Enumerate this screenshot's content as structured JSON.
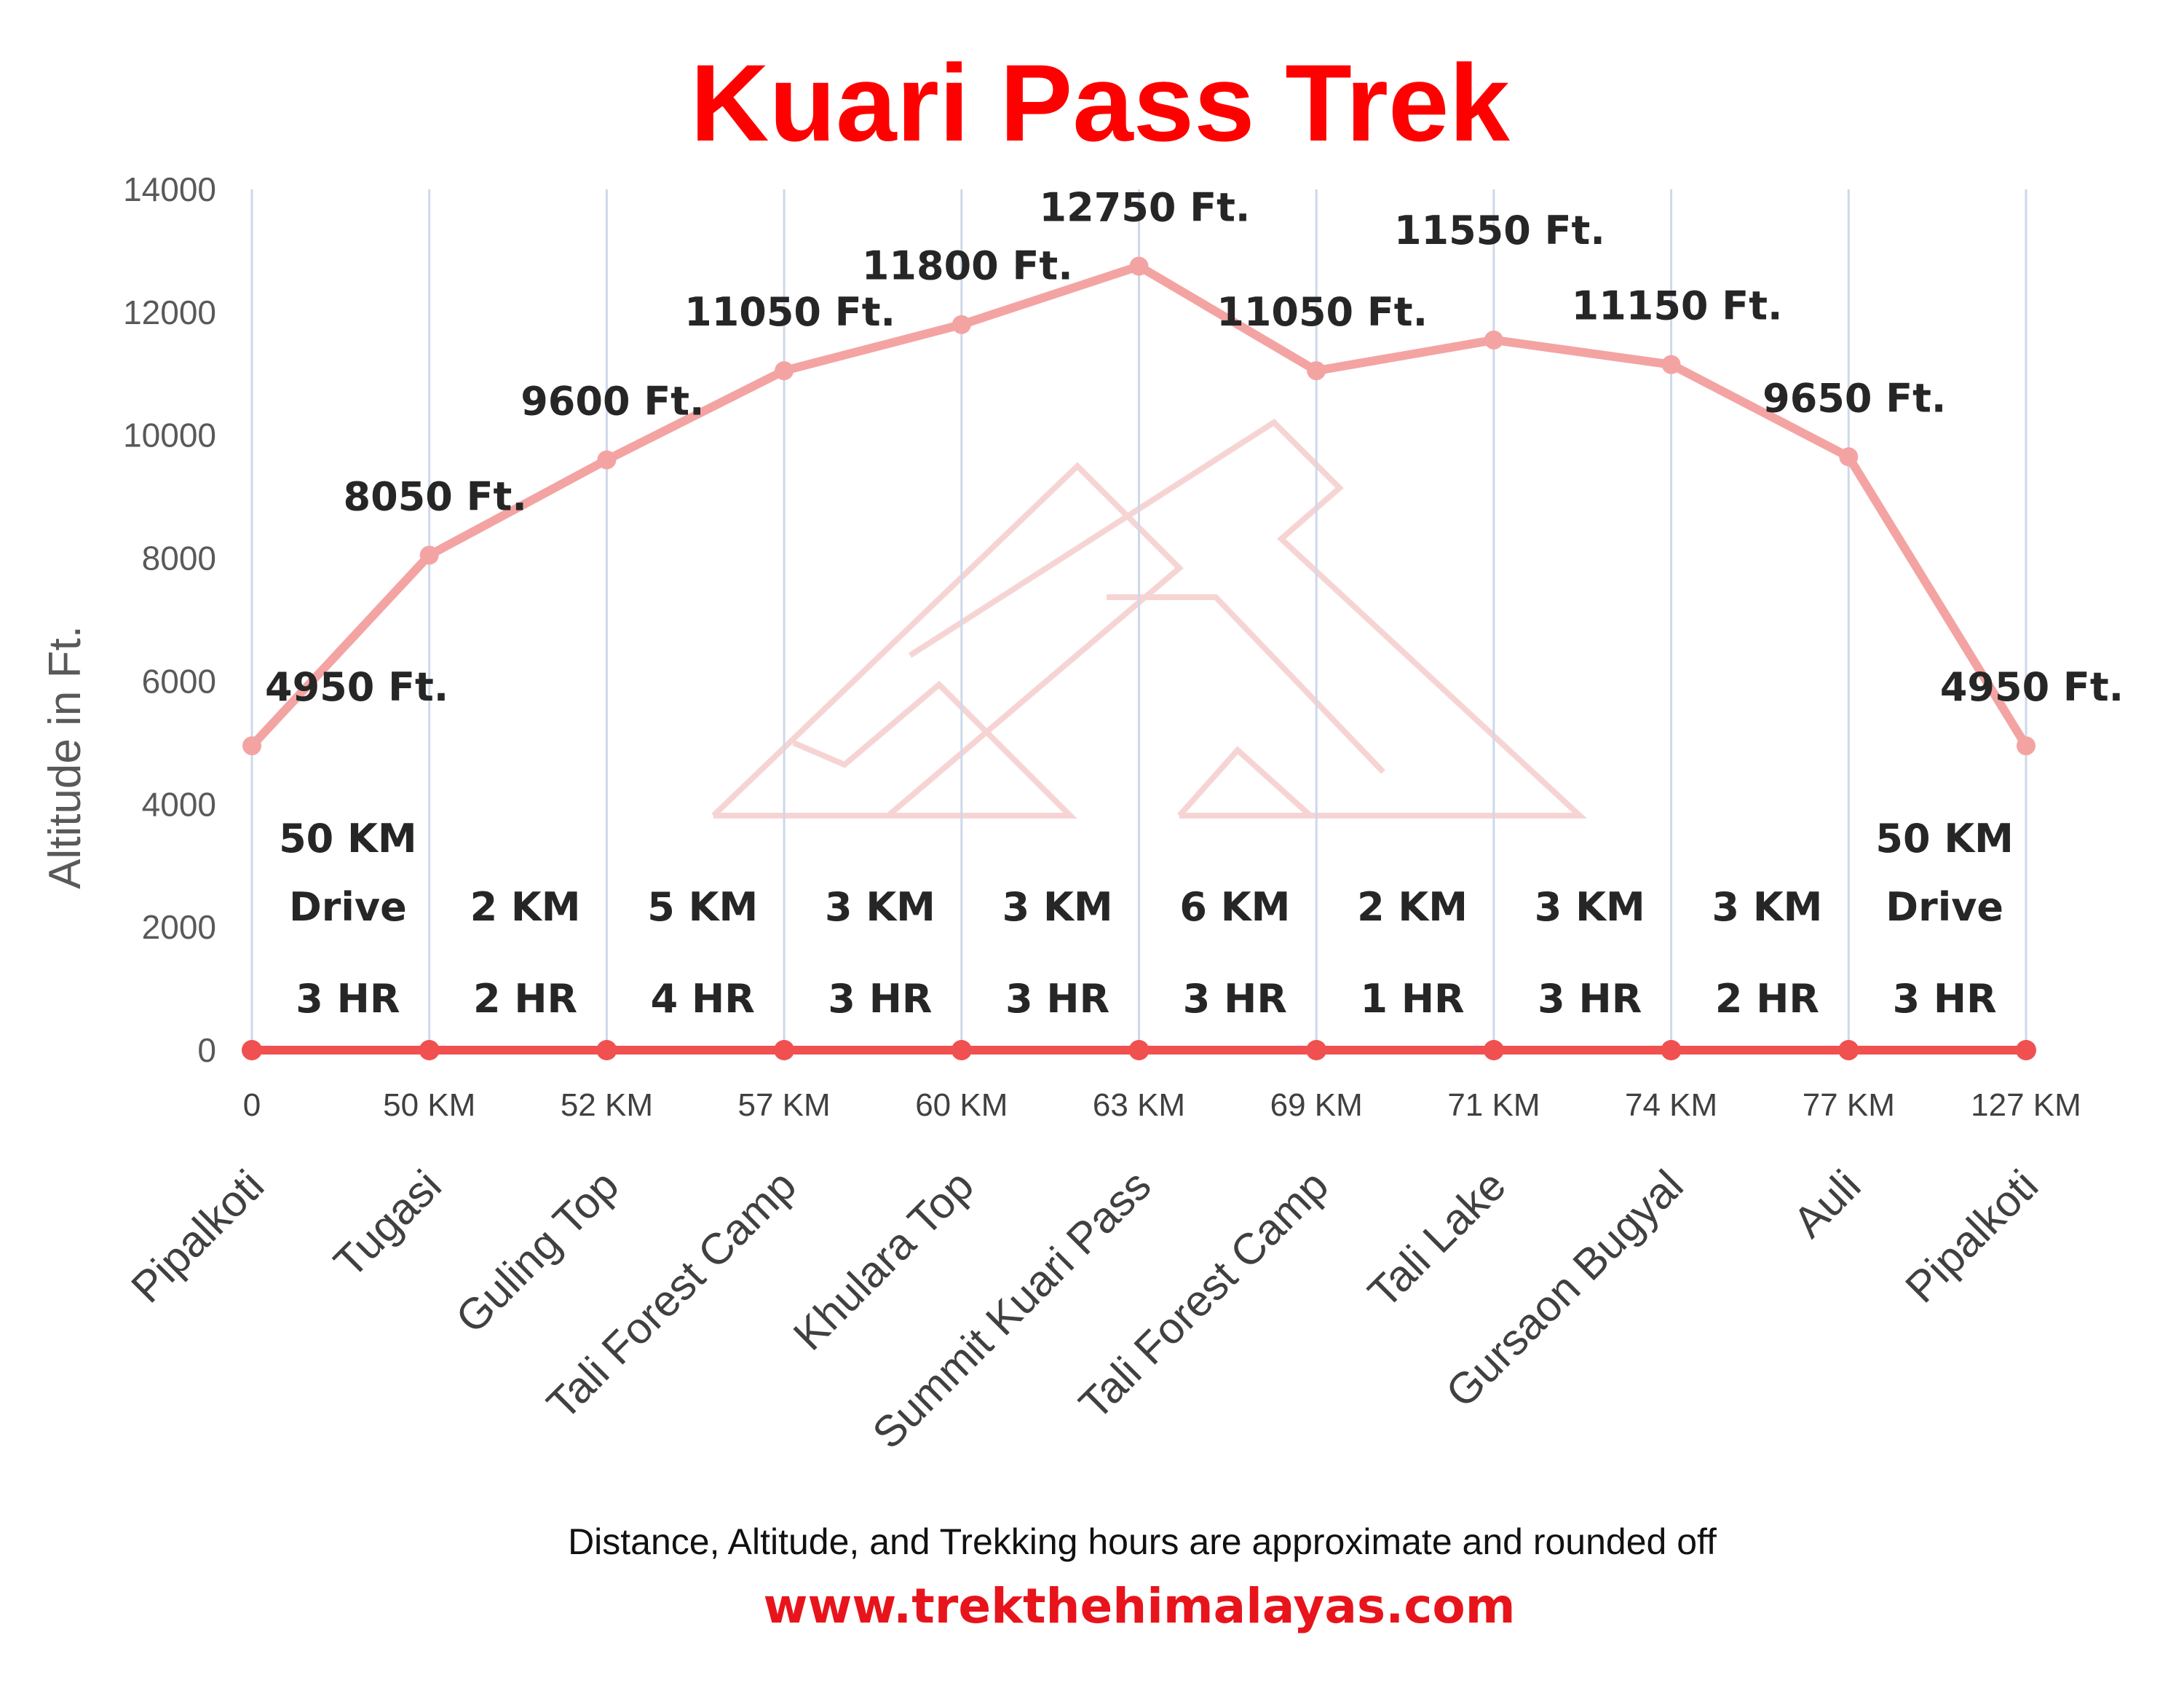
{
  "chart_data": {
    "type": "line",
    "title": "Kuari Pass Trek",
    "ylabel": "Altitude in Ft.",
    "ylim": [
      0,
      14000
    ],
    "yticks": [
      "0",
      "2000",
      "4000",
      "6000",
      "8000",
      "10000",
      "12000",
      "14000"
    ],
    "grid": "vertical",
    "categories": [
      "Pipalkoti",
      "Tugasi",
      "Guling Top",
      "Tali Forest Camp",
      "Khulara Top",
      "Summit Kuari Pass",
      "Tali Forest Camp",
      "Tali Lake",
      "Gursaon Bugyal",
      "Auli",
      "Pipalkoti"
    ],
    "distance_labels": [
      "0",
      "50 KM",
      "52 KM",
      "57 KM",
      "60 KM",
      "63 KM",
      "69 KM",
      "71 KM",
      "74 KM",
      "77 KM",
      "127 KM"
    ],
    "series": [
      {
        "values": [
          4950,
          8050,
          9600,
          11050,
          11800,
          12750,
          11050,
          11550,
          11150,
          9650,
          4950
        ],
        "color": "#f4a3a3"
      },
      {
        "values": [
          0,
          0,
          0,
          0,
          0,
          0,
          0,
          0,
          0,
          0,
          0
        ],
        "color": "#f05050"
      }
    ],
    "data_labels": [
      "4950 Ft.",
      "8050 Ft.",
      "9600 Ft.",
      "11050 Ft.",
      "11800 Ft.",
      "12750 Ft.",
      "11050 Ft.",
      "11550 Ft.",
      "11150 Ft.",
      "9650 Ft.",
      "4950 Ft."
    ],
    "segments": [
      {
        "top": "50  KM",
        "mid": "Drive",
        "bottom": "3 HR"
      },
      {
        "top": "",
        "mid": "2 KM",
        "bottom": "2 HR"
      },
      {
        "top": "",
        "mid": "5 KM",
        "bottom": "4 HR"
      },
      {
        "top": "",
        "mid": "3 KM",
        "bottom": "3 HR"
      },
      {
        "top": "",
        "mid": "3 KM",
        "bottom": "3 HR"
      },
      {
        "top": "",
        "mid": "6 KM",
        "bottom": "3 HR"
      },
      {
        "top": "",
        "mid": "2 KM",
        "bottom": "1 HR"
      },
      {
        "top": "",
        "mid": "3 KM",
        "bottom": "3 HR"
      },
      {
        "top": "",
        "mid": "3 KM",
        "bottom": "2 HR"
      },
      {
        "top": "50  KM",
        "mid": "Drive",
        "bottom": "3 HR"
      }
    ],
    "footnote": "Distance, Altitude, and Trekking hours are approximate and rounded off",
    "website": "www.trekthehimalayas.com"
  }
}
